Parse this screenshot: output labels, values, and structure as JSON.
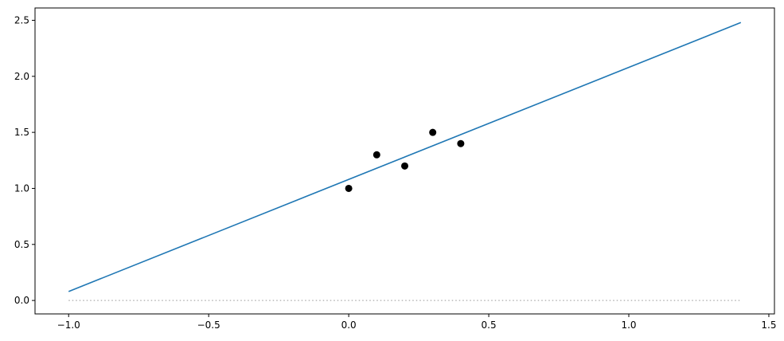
{
  "chart_data": {
    "type": "scatter",
    "xlim": [
      -1.12,
      1.52
    ],
    "ylim": [
      -0.12,
      2.61
    ],
    "xticks": [
      {
        "value": -1.0,
        "label": "−1.0"
      },
      {
        "value": -0.5,
        "label": "−0.5"
      },
      {
        "value": 0.0,
        "label": "0.0"
      },
      {
        "value": 0.5,
        "label": "0.5"
      },
      {
        "value": 1.0,
        "label": "1.0"
      },
      {
        "value": 1.5,
        "label": "1.5"
      }
    ],
    "yticks": [
      {
        "value": 0.0,
        "label": "0.0"
      },
      {
        "value": 0.5,
        "label": "0.5"
      },
      {
        "value": 1.0,
        "label": "1.0"
      },
      {
        "value": 1.5,
        "label": "1.5"
      },
      {
        "value": 2.0,
        "label": "2.0"
      },
      {
        "value": 2.5,
        "label": "2.5"
      }
    ],
    "series": [
      {
        "type": "scatter",
        "color": "#000000",
        "x": [
          0.0,
          0.1,
          0.2,
          0.3,
          0.4
        ],
        "values": [
          1.0,
          1.3,
          1.2,
          1.5,
          1.4
        ]
      },
      {
        "type": "line",
        "color": "#1f77b4",
        "x": [
          -1.0,
          1.4
        ],
        "values": [
          0.08,
          2.48
        ]
      },
      {
        "type": "line",
        "color": "#aaaaaa",
        "style": "dotted",
        "x": [
          -1.0,
          1.4
        ],
        "values": [
          0.0,
          0.0
        ]
      }
    ]
  }
}
